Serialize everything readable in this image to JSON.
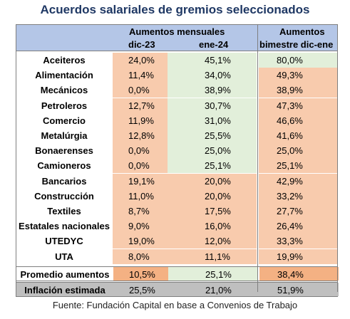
{
  "title": "Acuerdos salariales de gremios seleccionados",
  "header": {
    "group_monthly": "Aumentos mensuales",
    "col_dec": "dic-23",
    "col_jan": "ene-24",
    "group_bimonthly_line1": "Aumentos",
    "group_bimonthly_line2": "bimestre dic-ene"
  },
  "rows": [
    {
      "label": "Aceiteros",
      "dec": "24,0%",
      "jan": "45,1%",
      "bim": "80,0%"
    },
    {
      "label": "Alimentación",
      "dec": "11,4%",
      "jan": "34,0%",
      "bim": "49,3%"
    },
    {
      "label": "Mecánicos",
      "dec": "0,0%",
      "jan": "38,9%",
      "bim": "38,9%"
    },
    {
      "label": "Petroleros",
      "dec": "12,7%",
      "jan": "30,7%",
      "bim": "47,3%"
    },
    {
      "label": "Comercio",
      "dec": "11,9%",
      "jan": "31,0%",
      "bim": "46,6%"
    },
    {
      "label": "Metalúrgia",
      "dec": "12,8%",
      "jan": "25,5%",
      "bim": "41,6%"
    },
    {
      "label": "Bonaerenses",
      "dec": "0,0%",
      "jan": "25,0%",
      "bim": "25,0%"
    },
    {
      "label": "Camioneros",
      "dec": "0,0%",
      "jan": "25,1%",
      "bim": "25,1%"
    },
    {
      "label": "Bancarios",
      "dec": "19,1%",
      "jan": "20,0%",
      "bim": "42,9%"
    },
    {
      "label": "Construcción",
      "dec": "11,0%",
      "jan": "20,0%",
      "bim": "33,2%"
    },
    {
      "label": "Textiles",
      "dec": "8,7%",
      "jan": "17,5%",
      "bim": "27,7%"
    },
    {
      "label": "Estatales nacionales",
      "dec": "9,0%",
      "jan": "16,0%",
      "bim": "26,4%"
    },
    {
      "label": "UTEDYC",
      "dec": "19,0%",
      "jan": "12,0%",
      "bim": "33,3%"
    },
    {
      "label": "UTA",
      "dec": "8,0%",
      "jan": "11,1%",
      "bim": "19,9%"
    }
  ],
  "average": {
    "label": "Promedio aumentos",
    "dec": "10,5%",
    "jan": "25,1%",
    "bim": "38,4%"
  },
  "inflation": {
    "label": "Inflación estimada",
    "dec": "25,5%",
    "jan": "21,0%",
    "bim": "51,9%"
  },
  "colors": {
    "below_inflation": "#f8cbad",
    "above_inflation": "#e2efda",
    "average_highlight": "#f4b183",
    "inflation_row": "#bfbfbf",
    "header": "#b4c6e7"
  },
  "footer": "Fuente: Fundación Capital en base a Convenios de Trabajo"
}
